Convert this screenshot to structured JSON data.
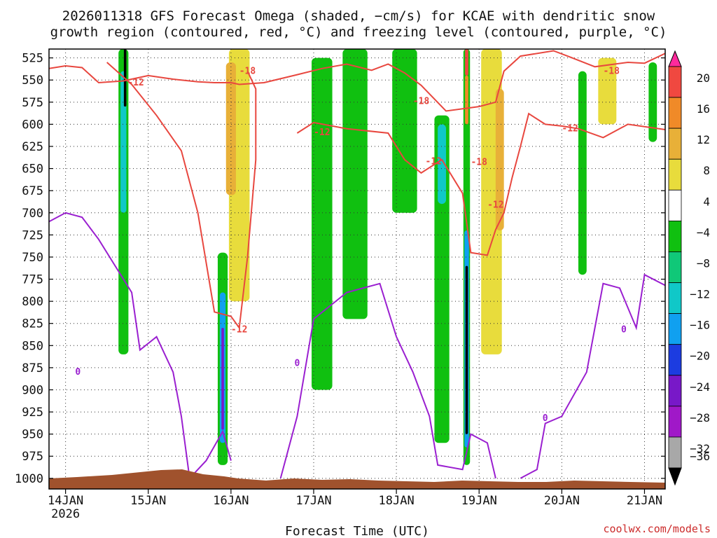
{
  "chart_data": {
    "type": "heatmap",
    "title_line1": "2026011318 GFS Forecast Omega (shaded, −cm/s) for KCAE with dendritic snow",
    "title_line2": "growth region (contoured, red, °C) and freezing level (contoured, purple, °C)",
    "xlabel": "Forecast Time (UTC)",
    "credit": "coolwx.com/models",
    "y_ticks": [
      "525",
      "550",
      "575",
      "600",
      "625",
      "650",
      "675",
      "700",
      "725",
      "750",
      "775",
      "800",
      "825",
      "850",
      "875",
      "900",
      "925",
      "950",
      "975",
      "1000"
    ],
    "y_range_hpa": [
      1012,
      515
    ],
    "x_range_days": [
      13.8,
      21.25
    ],
    "x_ticks": [
      {
        "day": 14,
        "label": "14JAN",
        "sublabel": "2026"
      },
      {
        "day": 15,
        "label": "15JAN",
        "sublabel": ""
      },
      {
        "day": 16,
        "label": "16JAN",
        "sublabel": ""
      },
      {
        "day": 17,
        "label": "17JAN",
        "sublabel": ""
      },
      {
        "day": 18,
        "label": "18JAN",
        "sublabel": ""
      },
      {
        "day": 19,
        "label": "19JAN",
        "sublabel": ""
      },
      {
        "day": 20,
        "label": "20JAN",
        "sublabel": ""
      },
      {
        "day": 21,
        "label": "21JAN",
        "sublabel": ""
      }
    ],
    "colorbar": {
      "labels": [
        "20",
        "16",
        "12",
        "8",
        "4",
        "−4",
        "−8",
        "−12",
        "−16",
        "−20",
        "−24",
        "−28",
        "−32",
        "−36"
      ],
      "colors": [
        "#ff2a9c",
        "#f04840",
        "#f08a28",
        "#e8b038",
        "#e8dc3c",
        "#ffffff",
        "#10c010",
        "#10c878",
        "#10c8c8",
        "#10a0f0",
        "#1c3ce0",
        "#7818c8",
        "#a018c8",
        "#a8a8a8",
        "#000000"
      ]
    },
    "contour_labels": [
      {
        "text": "-12",
        "day": 14.85,
        "p": 553,
        "color": "red"
      },
      {
        "text": "-18",
        "day": 16.2,
        "p": 540,
        "color": "red"
      },
      {
        "text": "-12",
        "day": 17.1,
        "p": 609,
        "color": "red"
      },
      {
        "text": "-18",
        "day": 18.3,
        "p": 574,
        "color": "red"
      },
      {
        "text": "-12",
        "day": 18.45,
        "p": 642,
        "color": "red"
      },
      {
        "text": "-18",
        "day": 19.0,
        "p": 643,
        "color": "red"
      },
      {
        "text": "-12",
        "day": 19.2,
        "p": 691,
        "color": "red"
      },
      {
        "text": "-12",
        "day": 20.1,
        "p": 605,
        "color": "red"
      },
      {
        "text": "-18",
        "day": 20.6,
        "p": 540,
        "color": "red"
      },
      {
        "text": "-12",
        "day": 16.1,
        "p": 832,
        "color": "red"
      },
      {
        "text": "0",
        "day": 14.15,
        "p": 880,
        "color": "purple"
      },
      {
        "text": "0",
        "day": 16.8,
        "p": 870,
        "color": "purple"
      },
      {
        "text": "0",
        "day": 19.8,
        "p": 932,
        "color": "purple"
      },
      {
        "text": "0",
        "day": 20.75,
        "p": 832,
        "color": "purple"
      }
    ],
    "red_contour_upper": [
      [
        13.8,
        537
      ],
      [
        14.0,
        534
      ],
      [
        14.2,
        536
      ],
      [
        14.4,
        553
      ],
      [
        14.7,
        551
      ],
      [
        15.0,
        545
      ],
      [
        15.3,
        549
      ],
      [
        15.6,
        552
      ],
      [
        15.8,
        553
      ],
      [
        16.0,
        553
      ],
      [
        16.1,
        555
      ],
      [
        16.4,
        553
      ],
      [
        16.8,
        544
      ],
      [
        17.1,
        537
      ],
      [
        17.4,
        532
      ],
      [
        17.7,
        539
      ],
      [
        17.9,
        532
      ],
      [
        18.1,
        542
      ],
      [
        18.3,
        556
      ],
      [
        18.6,
        585
      ],
      [
        19.0,
        580
      ],
      [
        19.2,
        575
      ],
      [
        19.3,
        540
      ],
      [
        19.5,
        523
      ],
      [
        19.9,
        517
      ],
      [
        20.1,
        524
      ],
      [
        20.4,
        535
      ],
      [
        20.8,
        530
      ],
      [
        21.0,
        531
      ],
      [
        21.25,
        520
      ]
    ],
    "red_contour_mid": [
      [
        16.8,
        610
      ],
      [
        17.0,
        598
      ],
      [
        17.4,
        605
      ],
      [
        17.9,
        610
      ],
      [
        18.1,
        640
      ],
      [
        18.3,
        655
      ],
      [
        18.55,
        640
      ],
      [
        18.8,
        678
      ],
      [
        18.9,
        745
      ],
      [
        19.1,
        748
      ],
      [
        19.2,
        719
      ],
      [
        19.3,
        700
      ],
      [
        19.4,
        660
      ],
      [
        19.5,
        625
      ],
      [
        19.6,
        588
      ],
      [
        19.8,
        600
      ],
      [
        20.0,
        602
      ],
      [
        20.2,
        605
      ],
      [
        20.5,
        615
      ],
      [
        20.8,
        600
      ],
      [
        21.25,
        606
      ]
    ],
    "red_contour_left": [
      [
        14.5,
        530
      ],
      [
        14.8,
        555
      ],
      [
        15.1,
        590
      ],
      [
        15.4,
        630
      ],
      [
        15.6,
        700
      ],
      [
        15.8,
        812
      ],
      [
        16.0,
        817
      ],
      [
        16.1,
        830
      ],
      [
        16.2,
        750
      ],
      [
        16.3,
        640
      ],
      [
        16.3,
        560
      ],
      [
        16.2,
        540
      ]
    ],
    "purple_contour_left": [
      [
        13.8,
        710
      ],
      [
        14.0,
        700
      ],
      [
        14.2,
        705
      ],
      [
        14.4,
        730
      ],
      [
        14.6,
        760
      ],
      [
        14.8,
        790
      ],
      [
        14.9,
        855
      ],
      [
        15.1,
        840
      ],
      [
        15.3,
        880
      ],
      [
        15.4,
        930
      ],
      [
        15.5,
        1000
      ],
      [
        15.7,
        980
      ],
      [
        15.9,
        947
      ],
      [
        16.0,
        980
      ]
    ],
    "purple_contour_mid": [
      [
        16.6,
        1000
      ],
      [
        16.8,
        930
      ],
      [
        17.0,
        820
      ],
      [
        17.4,
        790
      ],
      [
        17.8,
        780
      ],
      [
        18.0,
        840
      ],
      [
        18.2,
        880
      ],
      [
        18.4,
        930
      ],
      [
        18.5,
        985
      ],
      [
        18.8,
        990
      ],
      [
        18.9,
        950
      ],
      [
        19.1,
        960
      ],
      [
        19.2,
        1000
      ]
    ],
    "purple_contour_right": [
      [
        19.5,
        1000
      ],
      [
        19.7,
        990
      ],
      [
        19.8,
        938
      ],
      [
        20.0,
        930
      ],
      [
        20.3,
        880
      ],
      [
        20.5,
        780
      ],
      [
        20.7,
        785
      ],
      [
        20.9,
        830
      ],
      [
        21.0,
        770
      ],
      [
        21.25,
        782
      ]
    ],
    "omega_blobs": [
      {
        "day": 14.7,
        "p_top": 515,
        "p_bot": 860,
        "w": 0.12,
        "color": "#10c010"
      },
      {
        "day": 14.7,
        "p_top": 540,
        "p_bot": 700,
        "w": 0.07,
        "color": "#10c8c8"
      },
      {
        "day": 14.72,
        "p_top": 515,
        "p_bot": 580,
        "w": 0.03,
        "color": "#000000"
      },
      {
        "day": 15.9,
        "p_top": 745,
        "p_bot": 985,
        "w": 0.12,
        "color": "#10c010"
      },
      {
        "day": 15.9,
        "p_top": 790,
        "p_bot": 960,
        "w": 0.07,
        "color": "#10a0f0"
      },
      {
        "day": 15.9,
        "p_top": 830,
        "p_bot": 945,
        "w": 0.03,
        "color": "#7818c8"
      },
      {
        "day": 16.1,
        "p_top": 515,
        "p_bot": 800,
        "w": 0.25,
        "color": "#e8dc3c"
      },
      {
        "day": 16.0,
        "p_top": 530,
        "p_bot": 680,
        "w": 0.12,
        "color": "#e8b038"
      },
      {
        "day": 17.1,
        "p_top": 525,
        "p_bot": 900,
        "w": 0.25,
        "color": "#10c010"
      },
      {
        "day": 17.5,
        "p_top": 515,
        "p_bot": 820,
        "w": 0.3,
        "color": "#10c010"
      },
      {
        "day": 18.1,
        "p_top": 515,
        "p_bot": 700,
        "w": 0.3,
        "color": "#10c010"
      },
      {
        "day": 18.55,
        "p_top": 590,
        "p_bot": 960,
        "w": 0.18,
        "color": "#10c010"
      },
      {
        "day": 18.55,
        "p_top": 600,
        "p_bot": 690,
        "w": 0.1,
        "color": "#10c8c8"
      },
      {
        "day": 18.85,
        "p_top": 515,
        "p_bot": 985,
        "w": 0.08,
        "color": "#10c010"
      },
      {
        "day": 18.85,
        "p_top": 720,
        "p_bot": 965,
        "w": 0.055,
        "color": "#10a0f0"
      },
      {
        "day": 18.85,
        "p_top": 760,
        "p_bot": 950,
        "w": 0.03,
        "color": "#000000"
      },
      {
        "day": 18.85,
        "p_top": 515,
        "p_bot": 545,
        "w": 0.04,
        "color": "#f04840"
      },
      {
        "day": 18.85,
        "p_top": 545,
        "p_bot": 600,
        "w": 0.04,
        "color": "#f08a28"
      },
      {
        "day": 19.15,
        "p_top": 515,
        "p_bot": 860,
        "w": 0.25,
        "color": "#e8dc3c"
      },
      {
        "day": 19.25,
        "p_top": 560,
        "p_bot": 720,
        "w": 0.1,
        "color": "#e8b038"
      },
      {
        "day": 20.25,
        "p_top": 540,
        "p_bot": 770,
        "w": 0.1,
        "color": "#10c010"
      },
      {
        "day": 20.55,
        "p_top": 525,
        "p_bot": 600,
        "w": 0.22,
        "color": "#e8dc3c"
      },
      {
        "day": 21.1,
        "p_top": 530,
        "p_bot": 620,
        "w": 0.1,
        "color": "#10c010"
      }
    ]
  }
}
